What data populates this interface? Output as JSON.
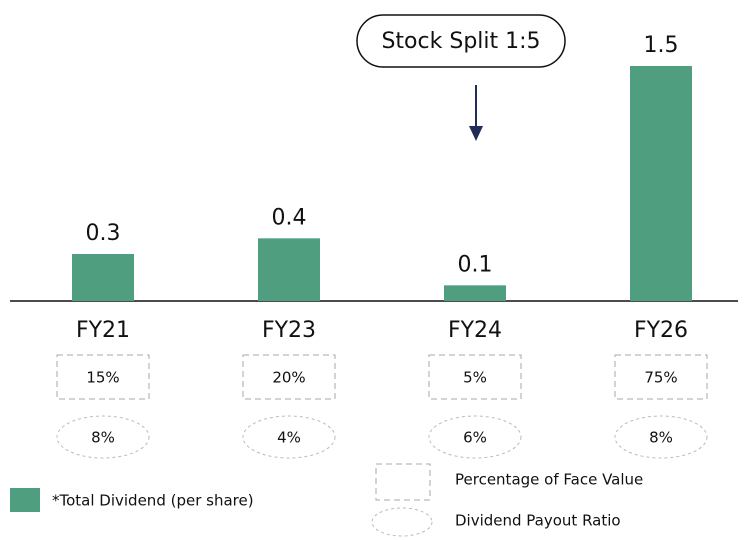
{
  "chart_data": {
    "type": "bar",
    "annotation": "Stock Split 1:5",
    "categories": [
      "FY21",
      "FY23",
      "FY24",
      "FY26"
    ],
    "values": [
      0.3,
      0.4,
      0.1,
      1.5
    ],
    "color": "#4f9e7f",
    "face_value_pct": [
      "15%",
      "20%",
      "5%",
      "75%"
    ],
    "payout_ratio": [
      "8%",
      "4%",
      "6%",
      "8%"
    ],
    "legend": {
      "bar": "*Total Dividend (per share)",
      "box": "Percentage of Face Value",
      "ellipse": "Dividend Payout Ratio"
    }
  }
}
